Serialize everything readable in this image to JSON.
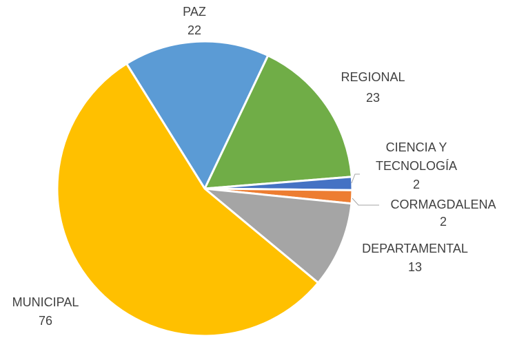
{
  "chart_data": {
    "type": "pie",
    "categories": [
      "PAZ",
      "REGIONAL",
      "CIENCIA Y TECNOLOGÍA",
      "CORMAGDALENA",
      "DEPARTAMENTAL",
      "MUNICIPAL"
    ],
    "values": [
      22,
      23,
      2,
      2,
      13,
      76
    ],
    "colors": [
      "#5b9bd5",
      "#70ad47",
      "#4472c4",
      "#ed7d31",
      "#a5a5a5",
      "#ffc000"
    ]
  }
}
